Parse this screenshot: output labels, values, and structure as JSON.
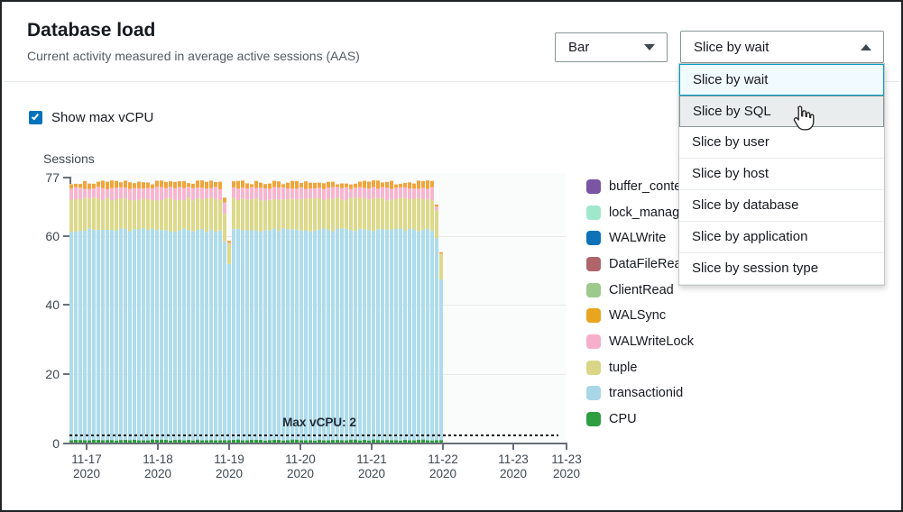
{
  "window": {
    "title": "Database load",
    "subtitle": "Current activity measured in average active sessions (AAS)"
  },
  "toolbar": {
    "chart_type_select": {
      "value": "Bar",
      "expanded": false
    },
    "slice_by_select": {
      "value": "Slice by wait",
      "expanded": true
    }
  },
  "slice_dropdown": {
    "options": [
      {
        "label": "Slice by wait",
        "state": "selected"
      },
      {
        "label": "Slice by SQL",
        "state": "hovered"
      },
      {
        "label": "Slice by user",
        "state": "normal"
      },
      {
        "label": "Slice by host",
        "state": "normal"
      },
      {
        "label": "Slice by database",
        "state": "normal"
      },
      {
        "label": "Slice by application",
        "state": "normal"
      },
      {
        "label": "Slice by session type",
        "state": "normal"
      }
    ]
  },
  "controls": {
    "show_max_vcpu": {
      "label": "Show max vCPU",
      "checked": true
    }
  },
  "chart_data": {
    "type": "bar",
    "stacked": true,
    "title": "Database load",
    "ylabel": "Sessions",
    "ylim": [
      0,
      77
    ],
    "yticks": [
      0,
      20,
      40,
      60,
      77
    ],
    "x_ticks": [
      {
        "line1": "11-17",
        "line2": "2020"
      },
      {
        "line1": "11-18",
        "line2": "2020"
      },
      {
        "line1": "11-19",
        "line2": "2020"
      },
      {
        "line1": "11-20",
        "line2": "2020"
      },
      {
        "line1": "11-21",
        "line2": "2020"
      },
      {
        "line1": "11-22",
        "line2": "2020"
      },
      {
        "line1": "11-23",
        "line2": "2020"
      },
      {
        "line1": "11-23",
        "line2": "2020"
      }
    ],
    "bar_count": 83,
    "stack_order_bottom_to_top": [
      "CPU",
      "transactionid",
      "tuple",
      "WALWriteLock",
      "WALSync"
    ],
    "typical_stack_tops": {
      "CPU": 1.0,
      "transactionid": 61.8,
      "tuple": 70.8,
      "WALWriteLock": 74.0,
      "WALSync": 75.6
    },
    "anomaly_bars": {
      "34": {
        "CPU": 1.0,
        "transactionid": 58.5,
        "tuple": 66.5,
        "WALWriteLock": 69.8,
        "WALSync": 71.2
      },
      "35": {
        "CPU": 1.0,
        "transactionid": 52.0,
        "tuple": 57.8,
        "WALWriteLock": 58.1,
        "WALSync": 58.7
      },
      "81": {
        "CPU": 1.0,
        "transactionid": 59.5,
        "tuple": 67.5,
        "WALWriteLock": 68.6,
        "WALSync": 69.2
      },
      "82": {
        "CPU": 1.0,
        "transactionid": 47.5,
        "tuple": 54.8,
        "WALWriteLock": 54.9,
        "WALSync": 55.4
      }
    },
    "max_vcpu_line": {
      "value": 2,
      "label": "Max vCPU: 2"
    },
    "series_colors": {
      "CPU": "#2f9e41",
      "transactionid": "#aedcec",
      "tuple": "#dcd98b",
      "WALWriteLock": "#f7b6cf",
      "WALSync": "#f0a53c"
    },
    "legend_position": "right",
    "grid": true
  },
  "legend": {
    "items": [
      {
        "label": "buffer_content",
        "color": "#7a55a3"
      },
      {
        "label": "lock_manager",
        "color": "#9fe8cc"
      },
      {
        "label": "WALWrite",
        "color": "#0d72b8"
      },
      {
        "label": "DataFileRead",
        "color": "#b0646c"
      },
      {
        "label": "ClientRead",
        "color": "#9dc98d"
      },
      {
        "label": "WALSync",
        "color": "#e9a420"
      },
      {
        "label": "WALWriteLock",
        "color": "#f7aecb"
      },
      {
        "label": "tuple",
        "color": "#d9d687"
      },
      {
        "label": "transactionid",
        "color": "#a9d7e8"
      },
      {
        "label": "CPU",
        "color": "#2f9e41"
      }
    ]
  }
}
